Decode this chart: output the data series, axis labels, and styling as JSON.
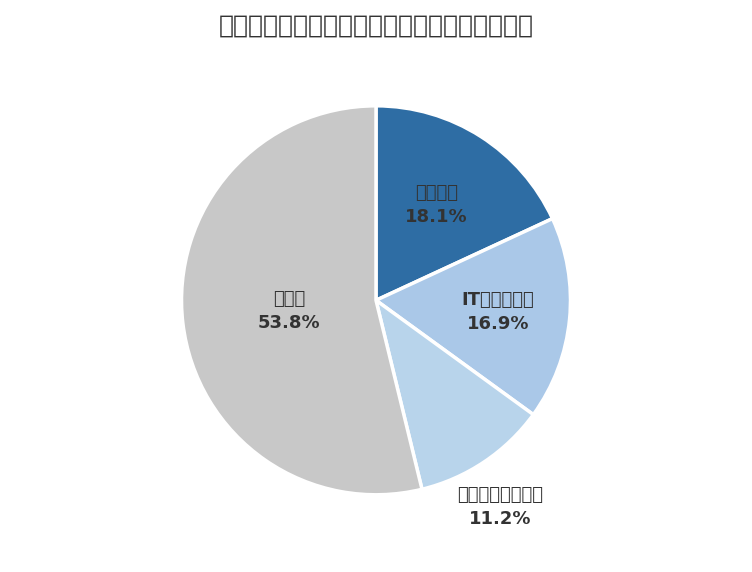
{
  "title": "》業界別「リクルートエージェントの求人内訳",
  "title_raw": "【業界別】リクルートエージェントの求人内訳",
  "labels": [
    "人材業界",
    "IT／通信業界",
    "不動産／建設業界",
    "その他"
  ],
  "values": [
    18.1,
    16.9,
    11.2,
    53.8
  ],
  "colors": [
    "#2e6da4",
    "#aac8e8",
    "#b8d4eb",
    "#c8c8c8"
  ],
  "text_color": "#333333",
  "background_color": "#ffffff",
  "label_fontsize": 13,
  "title_fontsize": 18,
  "startangle": 90,
  "wedge_edge_color": "#ffffff",
  "wedge_linewidth": 2.5
}
